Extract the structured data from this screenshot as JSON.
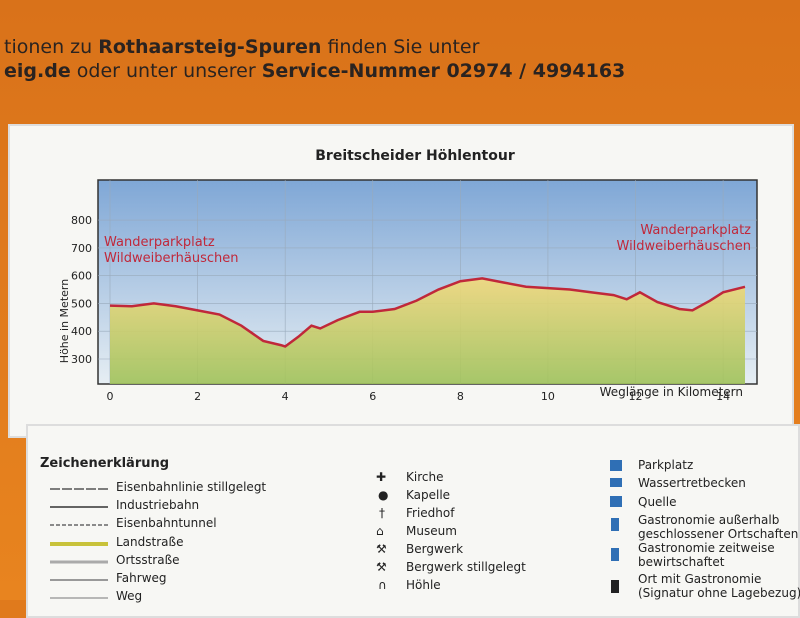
{
  "header": {
    "line1": [
      "tionen zu",
      "Rothaarsteig-Spuren",
      "finden Sie unter"
    ],
    "line2": [
      "eig.de",
      "oder unter unserer",
      "Service-Nummer 02974 / 4994163"
    ]
  },
  "chart_data": {
    "type": "area",
    "title": "Breitscheider Höhlentour",
    "y_label": "Höhe in Metern",
    "x_label": "Weglänge in Kilometern",
    "annotations": [
      [
        "Wanderparkplatz",
        "Wildweiberhäuschen"
      ],
      [
        "Wanderparkplatz",
        "Wildweiberhäuschen"
      ]
    ],
    "annotation_color": "#c0283a",
    "x": [
      0,
      0.5,
      1,
      1.5,
      2,
      2.5,
      3,
      3.5,
      3.9,
      4,
      4.3,
      4.6,
      4.8,
      5.2,
      5.7,
      6,
      6.5,
      7,
      7.5,
      8,
      8.5,
      9,
      9.5,
      10,
      10.5,
      11,
      11.5,
      11.8,
      12.1,
      12.5,
      13,
      13.3,
      13.7,
      14,
      14.5
    ],
    "series": [
      {
        "color": "#c0283a",
        "values": [
          492,
          490,
          500,
          490,
          475,
          460,
          420,
          365,
          350,
          345,
          380,
          420,
          410,
          440,
          470,
          470,
          480,
          510,
          550,
          580,
          590,
          575,
          560,
          555,
          550,
          540,
          530,
          515,
          540,
          505,
          480,
          475,
          510,
          540,
          560
        ]
      }
    ],
    "xlim": [
      0,
      14.5
    ],
    "xticks": [
      0,
      2,
      4,
      6,
      8,
      10,
      12,
      14
    ],
    "ylim": [
      210,
      930
    ],
    "yticks": [
      300,
      400,
      500,
      600,
      700,
      800
    ],
    "grid": true
  },
  "legend": {
    "title": "Zeichenerklärung",
    "left": [
      "Eisenbahnlinie stillgelegt",
      "Industriebahn",
      "Eisenbahntunnel",
      "Landstraße",
      "Ortsstraße",
      "Fahrweg",
      "Weg"
    ],
    "middle": [
      "Kirche",
      "Kapelle",
      "Friedhof",
      "Museum",
      "Bergwerk",
      "Bergwerk stillgelegt",
      "Höhle"
    ],
    "right": [
      "Parkplatz",
      "Wassertretbecken",
      "Quelle",
      "Gastronomie außerhalb",
      "geschlossener Ortschaften",
      "Gastronomie zeitweise",
      "bewirtschaftet",
      "Ort mit Gastronomie",
      "(Signatur ohne Lagebezug)"
    ]
  }
}
